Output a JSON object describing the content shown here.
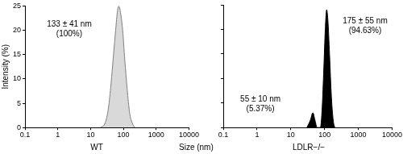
{
  "x_label": "Size (nm)",
  "chart_data": [
    {
      "type": "line",
      "title": "WT",
      "y_label": "Intensity (%)",
      "x": [
        20,
        28,
        35,
        42,
        50,
        58,
        66,
        72,
        80,
        95,
        110,
        130,
        155,
        185,
        220
      ],
      "values": [
        0,
        1,
        4,
        9,
        15,
        20,
        24,
        25,
        24,
        20,
        14,
        8,
        3,
        1,
        0
      ],
      "color": "#d9d9d9",
      "xlim": [
        0.1,
        10000
      ],
      "xticks": [
        0.1,
        1,
        10,
        100,
        1000,
        10000
      ],
      "ylim": [
        0,
        25
      ],
      "yticks": [
        0,
        5,
        10,
        15,
        20,
        25
      ],
      "log": "x",
      "grid": false,
      "annotations": [
        [
          "133 ± 41 nm",
          "(100%)"
        ]
      ]
    },
    {
      "type": "line",
      "title": "LDLR−/−",
      "x": [
        30,
        38,
        45,
        52,
        60,
        75,
        85,
        95,
        105,
        115,
        125,
        140,
        160,
        180,
        200
      ],
      "values": [
        0,
        1.5,
        3,
        1.5,
        0,
        0,
        4,
        12,
        20,
        24,
        22,
        15,
        6,
        1.5,
        0
      ],
      "color": "#000000",
      "xlim": [
        0.1,
        10000
      ],
      "xticks": [
        0.1,
        1,
        10,
        100,
        1000,
        10000
      ],
      "ylim": [
        0,
        25
      ],
      "yticks": [
        0,
        5,
        10,
        15,
        20,
        25
      ],
      "log": "x",
      "grid": false,
      "tick_labels": "x",
      "annotations": [
        [
          "55 ± 10 nm",
          "(5.37%)"
        ],
        [
          "175 ± 55 nm",
          "(94.63%)"
        ]
      ]
    }
  ]
}
